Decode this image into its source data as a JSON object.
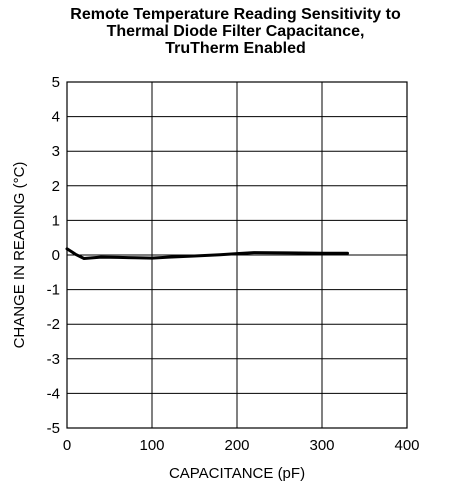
{
  "chart_data": {
    "type": "line",
    "title": [
      "Remote Temperature Reading Sensitivity to",
      "Thermal Diode Filter Capacitance,",
      "TruTherm Enabled"
    ],
    "xlabel": "CAPACITANCE (pF)",
    "ylabel": "CHANGE IN READING (°C)",
    "xlim": [
      0,
      400
    ],
    "ylim": [
      -5,
      5
    ],
    "xticks": [
      0,
      100,
      200,
      300,
      400
    ],
    "yticks": [
      -5,
      -4,
      -3,
      -2,
      -1,
      0,
      1,
      2,
      3,
      4,
      5
    ],
    "grid": true,
    "legend": "none",
    "series": [
      {
        "color": "#000000",
        "x": [
          0,
          5,
          10,
          20,
          40,
          60,
          80,
          100,
          120,
          150,
          180,
          200,
          220,
          260,
          300,
          330
        ],
        "y": [
          0.18,
          0.1,
          0.02,
          -0.1,
          -0.06,
          -0.07,
          -0.08,
          -0.09,
          -0.06,
          -0.03,
          0.01,
          0.04,
          0.07,
          0.06,
          0.05,
          0.05
        ]
      }
    ]
  }
}
